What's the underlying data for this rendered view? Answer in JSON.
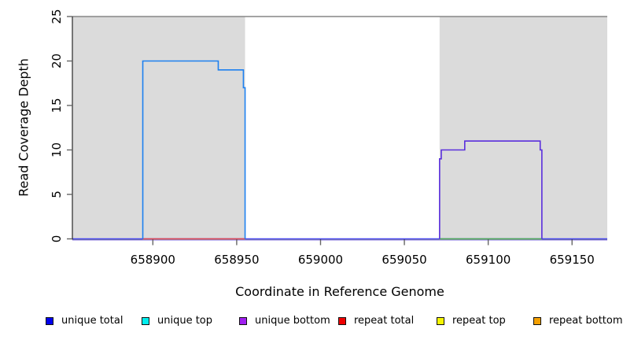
{
  "chart_data": {
    "type": "line",
    "title": "",
    "xlabel": "Coordinate in Reference Genome",
    "ylabel": "Read Coverage Depth",
    "xlim": [
      658852,
      659171
    ],
    "ylim": [
      0,
      25
    ],
    "x_ticks": [
      658900,
      658950,
      659000,
      659050,
      659100,
      659150
    ],
    "y_ticks": [
      0,
      5,
      10,
      15,
      20,
      25
    ],
    "grid": false,
    "legend_position": "bottom",
    "background_color": "#ffffff",
    "shaded_regions": [
      {
        "label": "aligned-block-1",
        "x0": 658852,
        "x1": 658955,
        "color": "#DBDBDB"
      },
      {
        "label": "aligned-block-2",
        "x0": 659071,
        "x1": 659171,
        "color": "#DBDBDB"
      }
    ],
    "top_boundary_line": {
      "y": 25,
      "color": "#868686"
    },
    "curves": [
      {
        "name": "unique-coverage-block-1",
        "color": "#1D80F0",
        "points": [
          [
            658894,
            0
          ],
          [
            658894,
            20
          ],
          [
            658939,
            20
          ],
          [
            658939,
            19
          ],
          [
            658954,
            19
          ],
          [
            658954,
            17
          ],
          [
            658955,
            17
          ],
          [
            658955,
            0
          ]
        ]
      },
      {
        "name": "unique-coverage-block-2",
        "color": "#5A2EDC",
        "points": [
          [
            659071,
            0
          ],
          [
            659071,
            9
          ],
          [
            659072,
            9
          ],
          [
            659072,
            10
          ],
          [
            659086,
            10
          ],
          [
            659086,
            11
          ],
          [
            659131,
            11
          ],
          [
            659131,
            10
          ],
          [
            659132,
            10
          ],
          [
            659132,
            0
          ]
        ]
      }
    ],
    "baseline_segments": [
      {
        "name": "baseline-unique-total",
        "color": "#4444EE",
        "x0": 658852,
        "x1": 659171,
        "y": 0,
        "offset": 0,
        "width": 1.4
      },
      {
        "name": "baseline-unique-bottom",
        "color": "#B3A7F2",
        "x0": 658852,
        "x1": 659171,
        "y": 0,
        "offset": 1.7,
        "width": 1
      },
      {
        "name": "baseline-repeat-block-1",
        "color": "#E2474D",
        "x0": 658894,
        "x1": 658955,
        "y": 0,
        "offset": 0,
        "width": 1.4
      },
      {
        "name": "baseline-green-block-2",
        "color": "#4FAE51",
        "x0": 659071,
        "x1": 659132,
        "y": 0,
        "offset": 0,
        "width": 1.4
      }
    ],
    "legend": [
      {
        "label": "unique total",
        "color": "#0000EE"
      },
      {
        "label": "unique top",
        "color": "#00EEEE"
      },
      {
        "label": "unique bottom",
        "color": "#A020F0"
      },
      {
        "label": "repeat total",
        "color": "#EE0000"
      },
      {
        "label": "repeat top",
        "color": "#F5F500"
      },
      {
        "label": "repeat bottom",
        "color": "#F5A000"
      }
    ]
  }
}
